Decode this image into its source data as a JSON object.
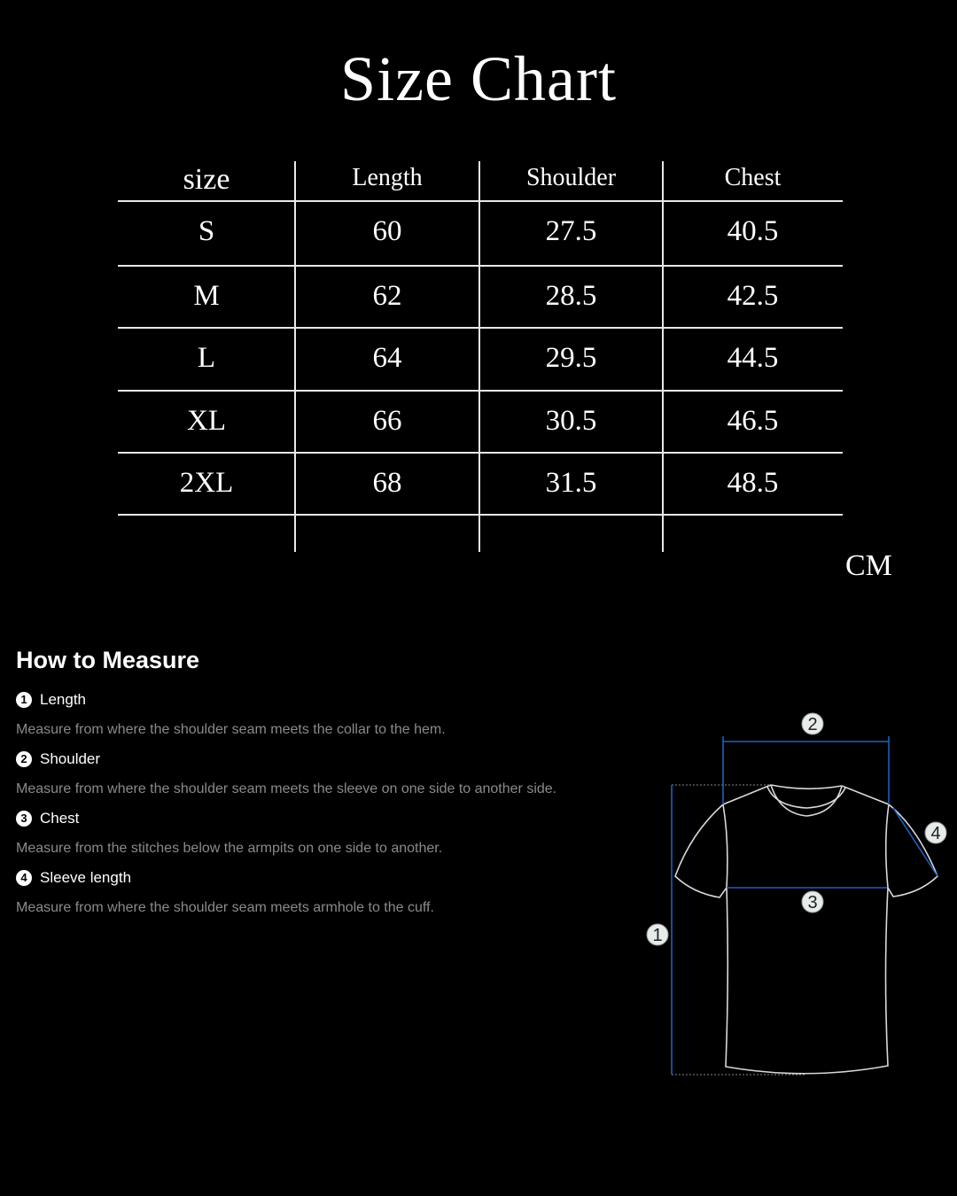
{
  "title": "Size Chart",
  "table": {
    "headers": [
      "size",
      "Length",
      "Shoulder",
      "Chest"
    ],
    "rows": [
      [
        "S",
        "60",
        "27.5",
        "40.5"
      ],
      [
        "M",
        "62",
        "28.5",
        "42.5"
      ],
      [
        "L",
        "64",
        "29.5",
        "44.5"
      ],
      [
        "XL",
        "66",
        "30.5",
        "46.5"
      ],
      [
        "2XL",
        "68",
        "31.5",
        "48.5"
      ]
    ],
    "unit": "CM"
  },
  "how_to_measure": {
    "heading": "How to Measure",
    "items": [
      {
        "num": "1",
        "label": "Length",
        "desc": "Measure from where the shoulder seam meets the collar to the hem."
      },
      {
        "num": "2",
        "label": "Shoulder",
        "desc": "Measure from where the shoulder seam meets the sleeve on one side to another side."
      },
      {
        "num": "3",
        "label": "Chest",
        "desc": "Measure from the stitches below the armpits on one side to another."
      },
      {
        "num": "4",
        "label": "Sleeve length",
        "desc": "Measure from where the shoulder seam meets armhole to the cuff."
      }
    ]
  },
  "diagram": {
    "markers": [
      "1",
      "2",
      "3",
      "4"
    ],
    "line_color": "#1f5fbf",
    "outline_color": "#d8d8d8"
  }
}
